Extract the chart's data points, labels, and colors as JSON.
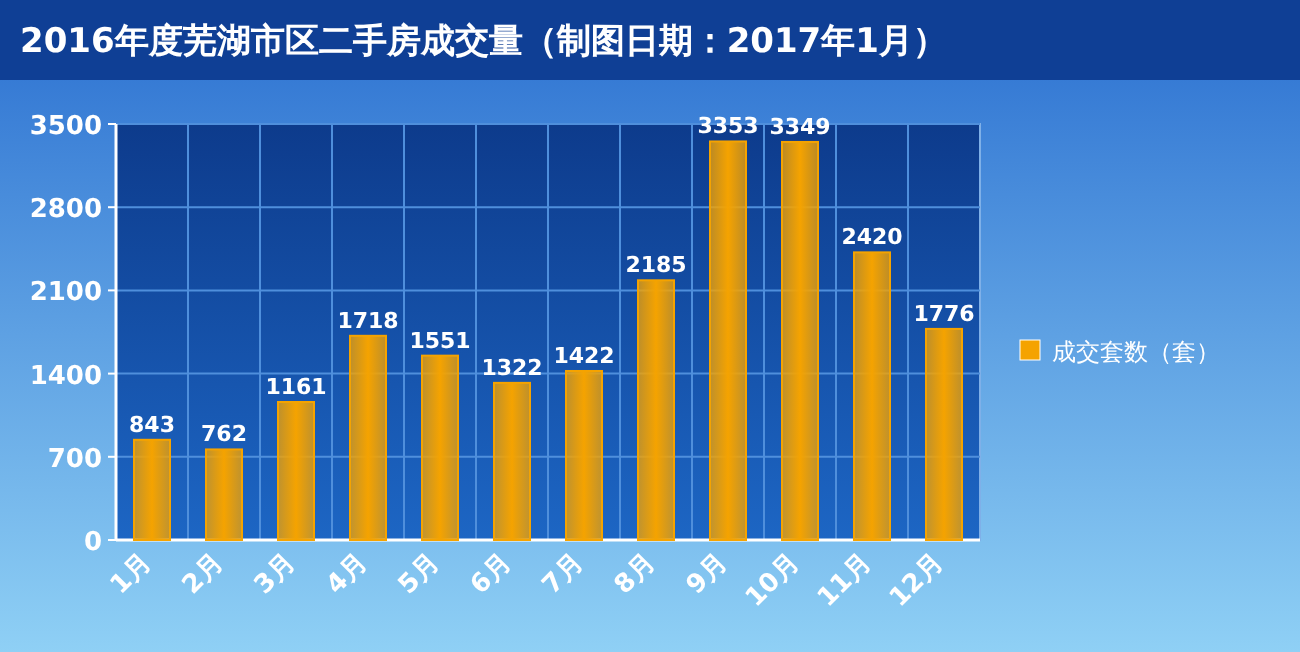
{
  "chart_data": {
    "type": "bar",
    "title": "2016年度芜湖市区二手房成交量（制图日期：2017年1月）",
    "categories": [
      "1月",
      "2月",
      "3月",
      "4月",
      "5月",
      "6月",
      "7月",
      "8月",
      "9月",
      "10月",
      "11月",
      "12月"
    ],
    "series": [
      {
        "name": "成交套数（套）",
        "color": "#f5a300",
        "values": [
          843,
          762,
          1161,
          1718,
          1551,
          1322,
          1422,
          2185,
          3353,
          3349,
          2420,
          1776
        ]
      }
    ],
    "ylim": [
      0,
      3500
    ],
    "yticks": [
      0,
      700,
      1400,
      2100,
      2800,
      3500
    ],
    "grid": true,
    "legend": "right",
    "data_labels": true
  }
}
